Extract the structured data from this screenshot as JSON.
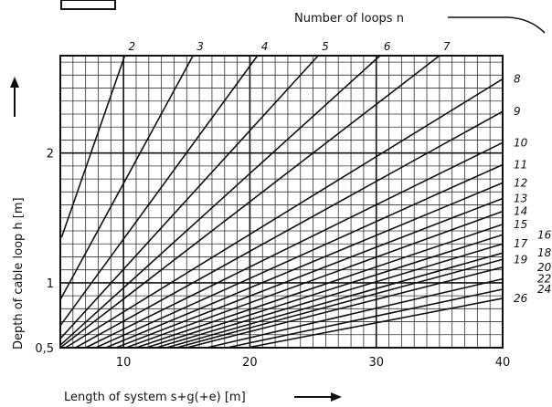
{
  "chart_data": {
    "type": "line",
    "xlabel": "Length of system s+g(+e) [m]",
    "ylabel": "Depth of cable loop h [m]",
    "legend_title": "Number of loops n",
    "xlim": [
      5,
      40
    ],
    "ylim": [
      0.5,
      2.75
    ],
    "x_ticks": [
      10,
      20,
      30,
      40
    ],
    "y_ticks": [
      0.5,
      1,
      2
    ],
    "y_tick_labels": [
      "0,5",
      "1",
      "2"
    ],
    "grid": true,
    "series": [
      {
        "name": "2",
        "x": [
          5.1,
          10.1
        ],
        "y": [
          1.35,
          2.75
        ]
      },
      {
        "name": "3",
        "x": [
          5.0,
          15.5
        ],
        "y": [
          0.87,
          2.75
        ]
      },
      {
        "name": "4",
        "x": [
          5.0,
          20.6
        ],
        "y": [
          0.67,
          2.75
        ]
      },
      {
        "name": "5",
        "x": [
          5.0,
          25.4
        ],
        "y": [
          0.57,
          2.75
        ]
      },
      {
        "name": "6",
        "x": [
          5.0,
          30.3
        ],
        "y": [
          0.52,
          2.75
        ]
      },
      {
        "name": "7",
        "x": [
          5.0,
          35.0
        ],
        "y": [
          0.5,
          2.75
        ]
      },
      {
        "name": "8",
        "x": [
          5.4,
          40.0
        ],
        "y": [
          0.5,
          2.57
        ]
      },
      {
        "name": "9",
        "x": [
          6.2,
          40.0
        ],
        "y": [
          0.5,
          2.32
        ]
      },
      {
        "name": "10",
        "x": [
          7.0,
          40.0
        ],
        "y": [
          0.5,
          2.08
        ]
      },
      {
        "name": "11",
        "x": [
          7.8,
          40.0
        ],
        "y": [
          0.5,
          1.91
        ]
      },
      {
        "name": "12",
        "x": [
          8.6,
          40.0
        ],
        "y": [
          0.5,
          1.77
        ]
      },
      {
        "name": "13",
        "x": [
          9.4,
          40.0
        ],
        "y": [
          0.5,
          1.65
        ]
      },
      {
        "name": "14",
        "x": [
          10.2,
          40.0
        ],
        "y": [
          0.5,
          1.55
        ]
      },
      {
        "name": "15",
        "x": [
          11.0,
          40.0
        ],
        "y": [
          0.5,
          1.45
        ]
      },
      {
        "name": "16",
        "x": [
          11.8,
          40.0
        ],
        "y": [
          0.5,
          1.37
        ]
      },
      {
        "name": "17",
        "x": [
          12.6,
          40.0
        ],
        "y": [
          0.5,
          1.3
        ]
      },
      {
        "name": "18",
        "x": [
          13.4,
          40.0
        ],
        "y": [
          0.5,
          1.23
        ]
      },
      {
        "name": "19",
        "x": [
          14.2,
          40.0
        ],
        "y": [
          0.5,
          1.18
        ]
      },
      {
        "name": "20",
        "x": [
          15.0,
          40.0
        ],
        "y": [
          0.5,
          1.12
        ]
      },
      {
        "name": "22",
        "x": [
          16.6,
          40.0
        ],
        "y": [
          0.5,
          1.03
        ]
      },
      {
        "name": "24",
        "x": [
          18.2,
          40.0
        ],
        "y": [
          0.5,
          0.95
        ]
      },
      {
        "name": "26",
        "x": [
          19.8,
          40.0
        ],
        "y": [
          0.5,
          0.88
        ]
      }
    ]
  }
}
